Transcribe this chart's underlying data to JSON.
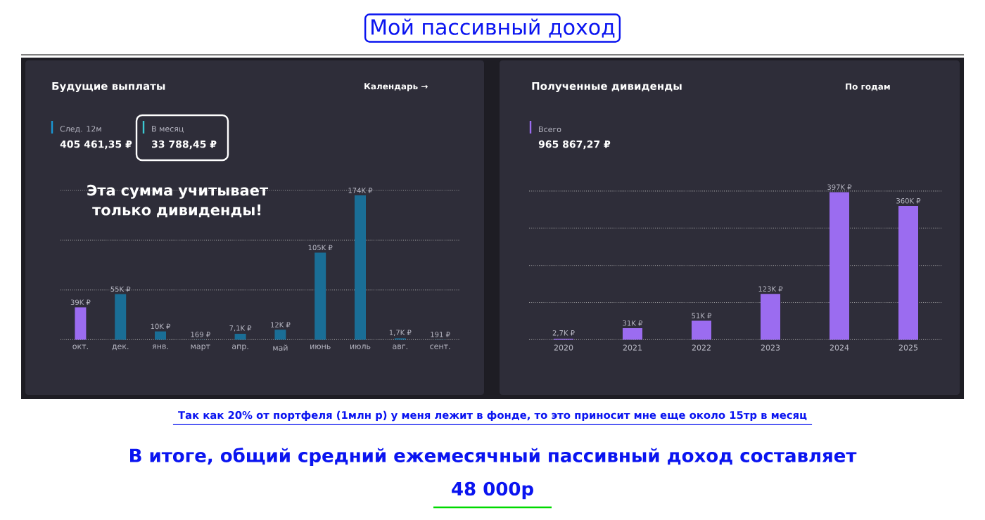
{
  "chart_data": [
    {
      "type": "bar",
      "title": "Будущие выплаты",
      "categories": [
        "окт.",
        "дек.",
        "янв.",
        "март",
        "апр.",
        "май",
        "июнь",
        "июль",
        "авг.",
        "сент."
      ],
      "values": [
        39000,
        55000,
        10000,
        169,
        7100,
        12000,
        105000,
        174000,
        1700,
        191
      ],
      "value_labels": [
        "39K ₽",
        "55K ₽",
        "10K ₽",
        "169 ₽",
        "7,1K ₽",
        "12K ₽",
        "105K ₽",
        "174K ₽",
        "1,7K ₽",
        "191 ₽"
      ],
      "colors": [
        "#9b6cf0",
        "#1a6e96",
        "#1a6e96",
        "#1a6e96",
        "#1a6e96",
        "#1a6e96",
        "#1a6e96",
        "#1a6e96",
        "#1a6e96",
        "#1a6e96"
      ],
      "ylim": [
        0,
        180000
      ],
      "yticks": [
        {
          "value": 0,
          "label": null
        },
        {
          "value": 60000,
          "label": null
        },
        {
          "value": 120000,
          "label": null
        },
        {
          "value": 180000,
          "label": null
        }
      ],
      "grid": "y",
      "tick_labels": "x",
      "annotations": [
        "Мой пассивный доход",
        "Календарь →",
        "След. 12м",
        "405 461,35 ₽",
        "В месяц",
        "33 788,45 ₽",
        "Эта сумма учитывает только дивиденды!"
      ]
    },
    {
      "type": "bar",
      "title": "Полученные дивиденды",
      "categories": [
        "2020",
        "2021",
        "2022",
        "2023",
        "2024",
        "2025"
      ],
      "values": [
        2700,
        31000,
        51000,
        123000,
        397000,
        360000
      ],
      "value_labels": [
        "2,7K ₽",
        "31K ₽",
        "51K ₽",
        "123K ₽",
        "397K ₽",
        "360K ₽"
      ],
      "colors": [
        "#9b6cf0",
        "#9b6cf0",
        "#9b6cf0",
        "#9b6cf0",
        "#9b6cf0",
        "#9b6cf0"
      ],
      "ylim": [
        0,
        400000
      ],
      "yticks": [
        {
          "value": 0,
          "label": null
        },
        {
          "value": 100000,
          "label": null
        },
        {
          "value": 200000,
          "label": null
        },
        {
          "value": 300000,
          "label": null
        },
        {
          "value": 400000,
          "label": null
        }
      ],
      "grid": "y",
      "tick_labels": "x",
      "annotations": [
        "По годам",
        "Всего",
        "965 867,27 ₽",
        "Так как 20% от портфеля (1млн р) у меня лежит в фонде, то это приносит мне еще около 15тр в месяц",
        "В итоге, общий средний ежемесячный пассивный доход составляет",
        "48 000р"
      ]
    }
  ]
}
